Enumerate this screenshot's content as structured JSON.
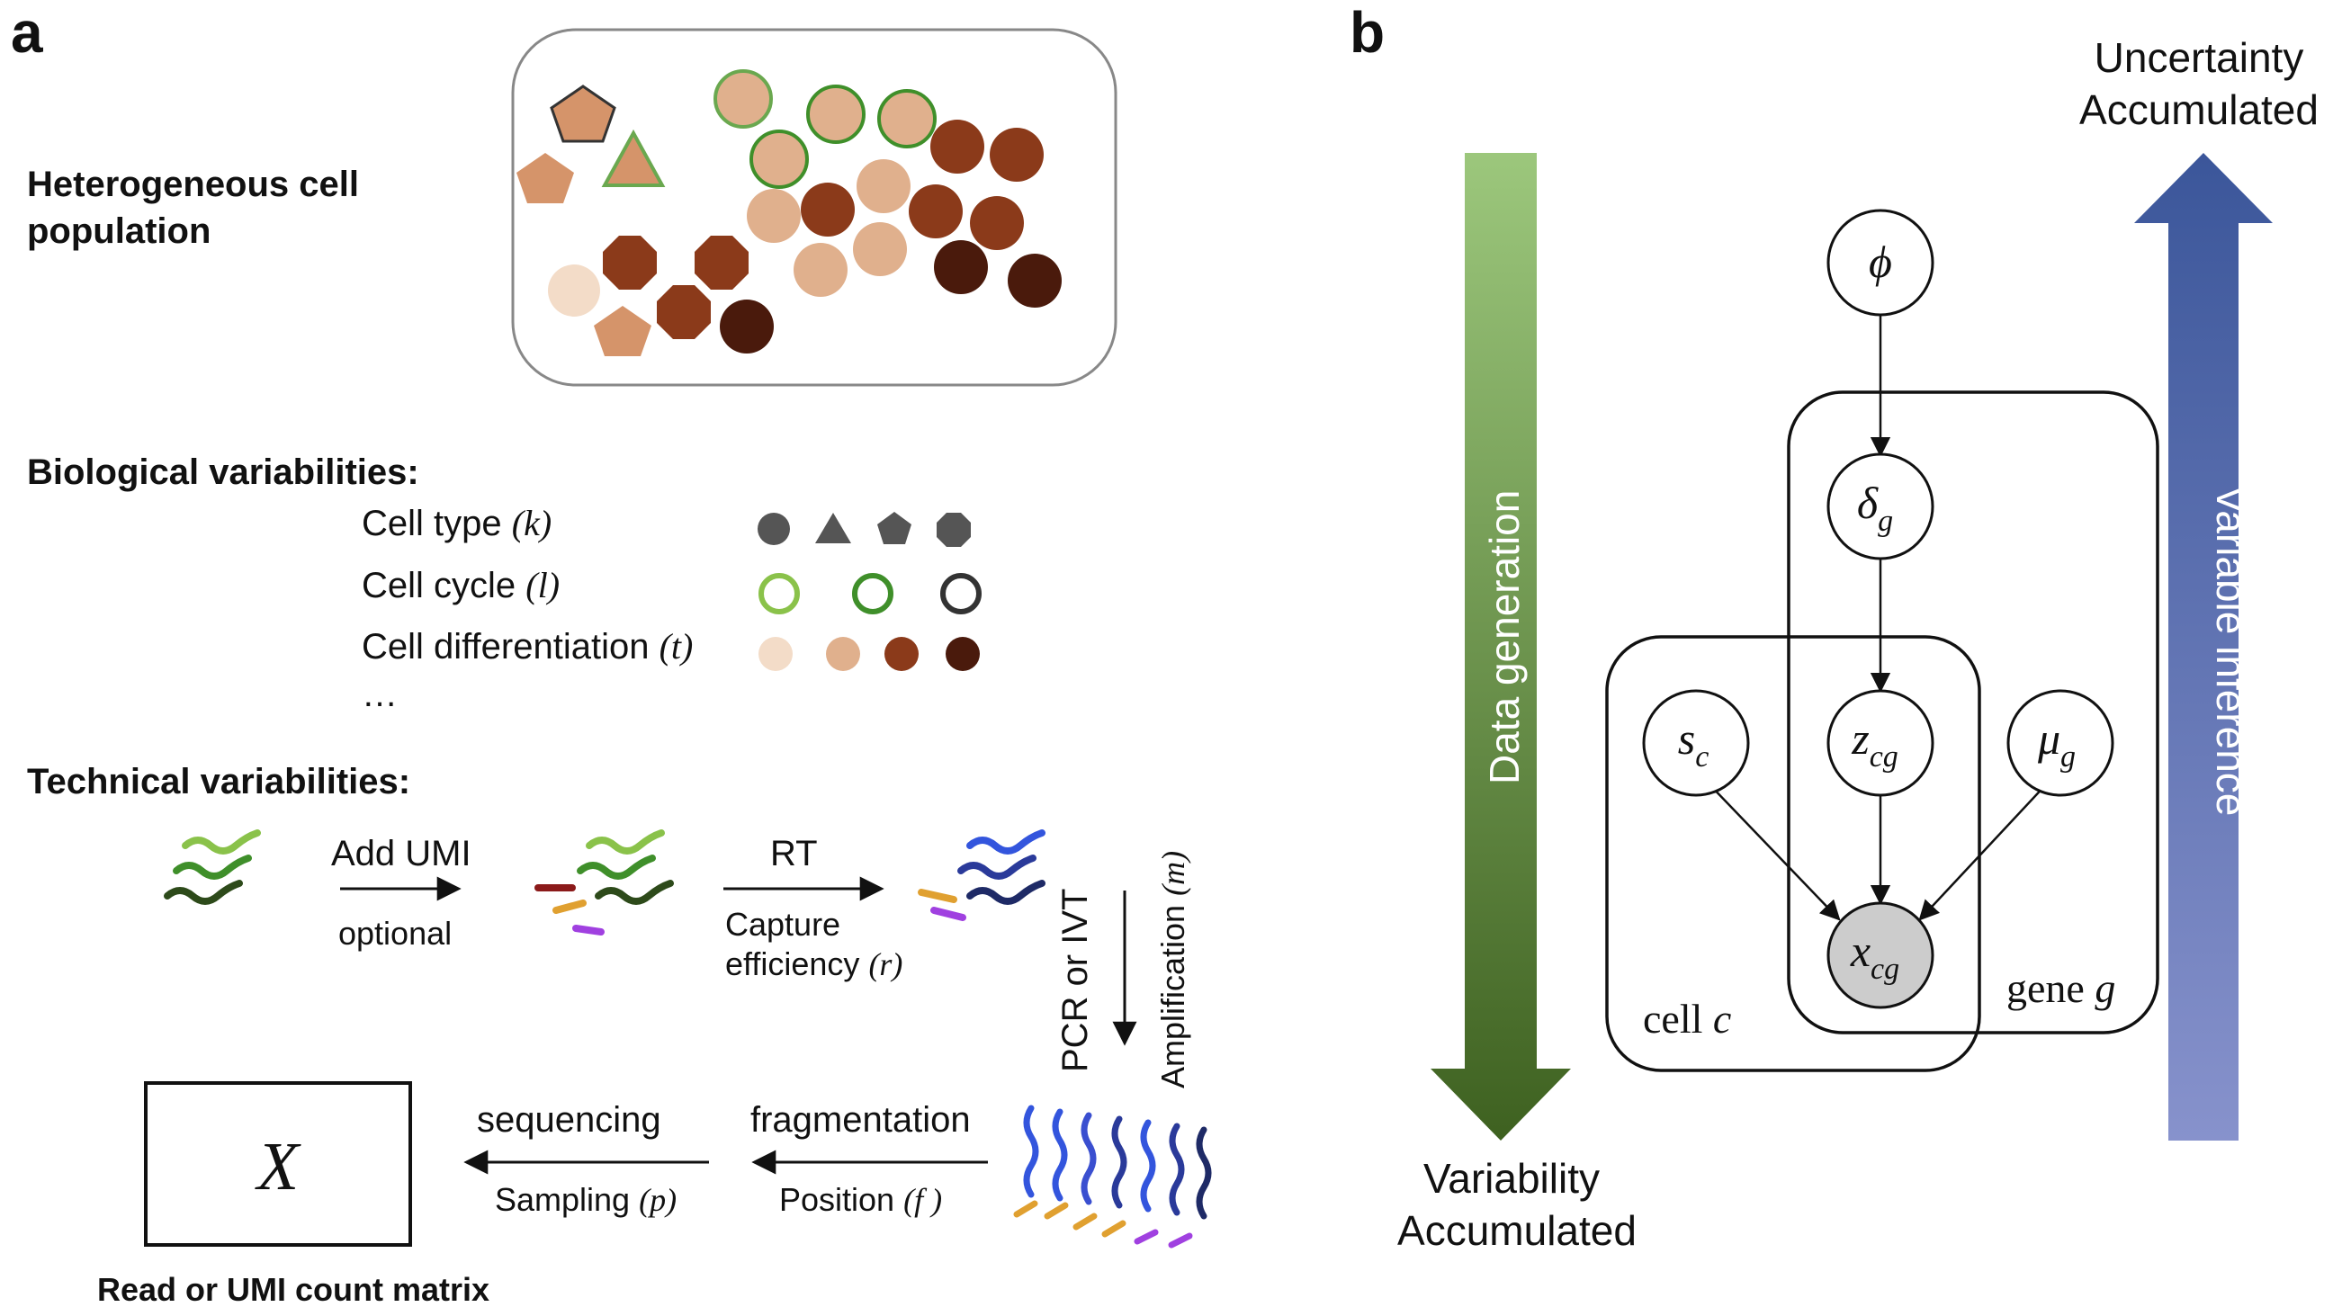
{
  "panel_a": {
    "label": "a",
    "population_title_line1": "Heterogeneous cell",
    "population_title_line2": "population",
    "bio_title": "Biological variabilities:",
    "bio_rows": [
      {
        "label": "Cell type",
        "var": "(k)"
      },
      {
        "label": "Cell cycle",
        "var": "(l)"
      },
      {
        "label": "Cell differentiation",
        "var": "(t)"
      }
    ],
    "bio_ellipsis": "…",
    "tech_title": "Technical variabilities:",
    "steps": {
      "add_umi": "Add UMI",
      "optional": "optional",
      "rt": "RT",
      "capture_line1": "Capture",
      "capture_line2": "efficiency",
      "capture_var": "(r)",
      "pcr": "PCR or IVT",
      "amplification": "Amplification",
      "amplification_var": "(m)",
      "fragmentation": "fragmentation",
      "position": "Position",
      "position_var": "(f )",
      "sequencing": "sequencing",
      "sampling": "Sampling",
      "sampling_var": "(p)"
    },
    "matrix_symbol": "X",
    "matrix_caption": "Read or UMI count matrix"
  },
  "panel_b": {
    "label": "b",
    "data_generation": "Data generation",
    "variability_line1": "Variability",
    "variability_line2": "Accumulated",
    "uncertainty_line1": "Uncertainty",
    "uncertainty_line2": "Accumulated",
    "variable_inference": "Variable inference",
    "nodes": {
      "phi": "ϕ",
      "delta": "δ",
      "delta_sub": "g",
      "s": "s",
      "s_sub": "c",
      "z": "z",
      "z_sub": "cg",
      "mu": "μ",
      "mu_sub": "g",
      "x": "x",
      "x_sub": "cg"
    },
    "plate_cell_label": "cell",
    "plate_cell_var": "c",
    "plate_gene_label": "gene",
    "plate_gene_var": "g"
  },
  "colors": {
    "cell_light": "#f3dcc8",
    "cell_tan": "#e0b08d",
    "cell_medium_tan": "#d5946a",
    "cell_brown": "#8b3a1a",
    "cell_dark": "#4a1a0c",
    "cycle_light_green": "#8ac24a",
    "cycle_green": "#3f8f2a",
    "type_gray": "#555555",
    "green_arrow_top": "#9cc77c",
    "green_arrow_bottom": "#3e6120",
    "blue_arrow_top": "#3b569a",
    "blue_arrow_bottom": "#8792cc",
    "observed_node": "#cccccc"
  }
}
